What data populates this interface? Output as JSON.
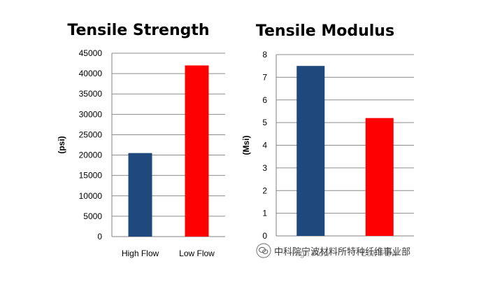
{
  "chart_data": [
    {
      "type": "bar",
      "title": "Tensile Strength",
      "ylabel": "(psi)",
      "xlabel": "",
      "categories": [
        "High Flow",
        "Low Flow"
      ],
      "values": [
        20500,
        42000
      ],
      "ylim": [
        0,
        45000
      ],
      "yticks": [
        "0",
        "5000",
        "10000",
        "15000",
        "20000",
        "25000",
        "30000",
        "35000",
        "40000",
        "45000"
      ],
      "colors": [
        "#1f497d",
        "#ff0000"
      ],
      "grid": true,
      "legend": "none"
    },
    {
      "type": "bar",
      "title": "Tensile Modulus",
      "ylabel": "(Msi)",
      "xlabel": "",
      "categories": [
        "High Flow",
        "Low Flow"
      ],
      "values": [
        7.5,
        5.2
      ],
      "ylim": [
        0,
        8
      ],
      "yticks": [
        "0",
        "1",
        "2",
        "3",
        "4",
        "5",
        "6",
        "7",
        "8"
      ],
      "colors": [
        "#1f497d",
        "#ff0000"
      ],
      "grid": true,
      "legend": "none"
    }
  ],
  "watermark": {
    "text": "中科院宁波材料所特种纤维事业部",
    "icon": "wechat-icon"
  }
}
